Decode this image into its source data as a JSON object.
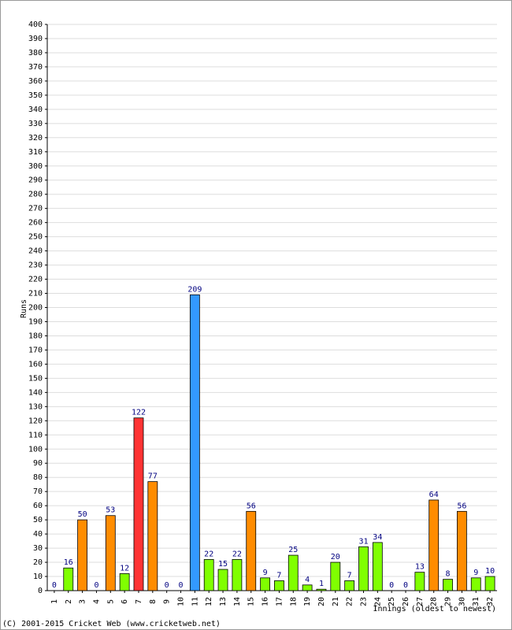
{
  "chart_data": {
    "type": "bar",
    "y_label": "Runs",
    "x_label": "Innings (oldest to newest)",
    "footer": "(C) 2001-2015 Cricket Web (www.cricketweb.net)",
    "categories": [
      "1",
      "2",
      "3",
      "4",
      "5",
      "6",
      "7",
      "8",
      "9",
      "10",
      "11",
      "12",
      "13",
      "14",
      "15",
      "16",
      "17",
      "18",
      "19",
      "20",
      "21",
      "22",
      "23",
      "24",
      "25",
      "26",
      "27",
      "28",
      "29",
      "30",
      "31",
      "32"
    ],
    "values": [
      0,
      16,
      50,
      0,
      53,
      12,
      122,
      77,
      0,
      0,
      209,
      22,
      15,
      22,
      56,
      9,
      7,
      25,
      4,
      1,
      20,
      7,
      31,
      34,
      0,
      0,
      13,
      64,
      8,
      56,
      9,
      10
    ],
    "colors": [
      "#80ff00",
      "#80ff00",
      "#ff8c00",
      "#80ff00",
      "#ff8c00",
      "#80ff00",
      "#ff3333",
      "#ff8c00",
      "#80ff00",
      "#80ff00",
      "#3399ff",
      "#80ff00",
      "#80ff00",
      "#80ff00",
      "#ff8c00",
      "#80ff00",
      "#80ff00",
      "#80ff00",
      "#80ff00",
      "#80ff00",
      "#80ff00",
      "#80ff00",
      "#80ff00",
      "#80ff00",
      "#80ff00",
      "#80ff00",
      "#80ff00",
      "#ff8c00",
      "#80ff00",
      "#ff8c00",
      "#80ff00",
      "#80ff00"
    ],
    "ylim": [
      0,
      400
    ],
    "yticks": [
      0,
      10,
      20,
      30,
      40,
      50,
      60,
      70,
      80,
      90,
      100,
      110,
      120,
      130,
      140,
      150,
      160,
      170,
      180,
      190,
      200,
      210,
      220,
      230,
      240,
      250,
      260,
      270,
      280,
      290,
      300,
      310,
      320,
      330,
      340,
      350,
      360,
      370,
      380,
      390,
      400
    ],
    "grid": true
  }
}
